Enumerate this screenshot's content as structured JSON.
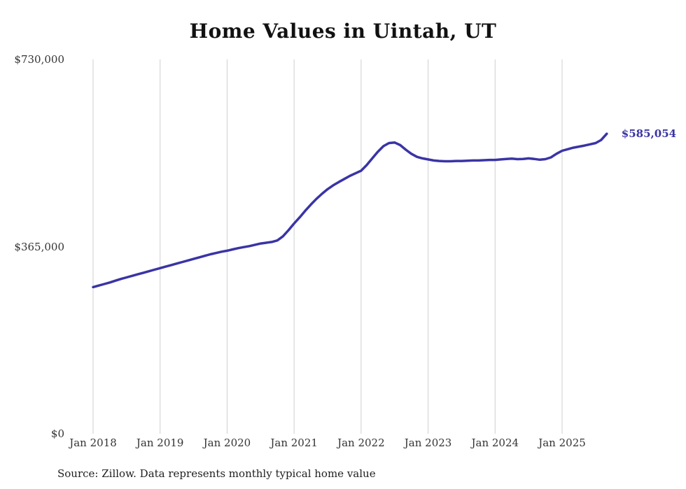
{
  "chart_data": {
    "type": "line",
    "title": "Home Values in Uintah, UT",
    "source_note": "Source: Zillow. Data represents monthly typical home value",
    "end_label": "$585,054",
    "latest_value": 585054,
    "line_color": "#3a34a5",
    "grid_color": "#cfcfcf",
    "label_color": "#333333",
    "ylim": [
      0,
      730000
    ],
    "grid": "vertical-only",
    "legend": "none",
    "y_ticks": [
      {
        "value": 0,
        "label": "$0"
      },
      {
        "value": 365000,
        "label": "$365,000"
      },
      {
        "value": 730000,
        "label": "$730,000"
      }
    ],
    "x_ticks": [
      {
        "label": "Jan 2018",
        "month_index": 0
      },
      {
        "label": "Jan 2019",
        "month_index": 12
      },
      {
        "label": "Jan 2020",
        "month_index": 24
      },
      {
        "label": "Jan 2021",
        "month_index": 36
      },
      {
        "label": "Jan 2022",
        "month_index": 48
      },
      {
        "label": "Jan 2023",
        "month_index": 60
      },
      {
        "label": "Jan 2024",
        "month_index": 72
      },
      {
        "label": "Jan 2025",
        "month_index": 84
      }
    ],
    "series": [
      {
        "name": "Typical home value",
        "start": "2018-01",
        "frequency": "monthly",
        "values": [
          286000,
          289000,
          292000,
          295000,
          298500,
          302000,
          305000,
          308000,
          311000,
          314000,
          317000,
          320000,
          323000,
          326000,
          329000,
          332000,
          335000,
          338000,
          341000,
          344000,
          347000,
          350000,
          352500,
          355000,
          357000,
          359500,
          362000,
          364000,
          366000,
          368500,
          371000,
          372500,
          374000,
          377000,
          385000,
          397000,
          410000,
          422000,
          435000,
          447000,
          458000,
          468000,
          477000,
          484500,
          491000,
          497000,
          503000,
          508000,
          513000,
          524000,
          537000,
          550000,
          561000,
          567000,
          568000,
          563000,
          554000,
          546000,
          540000,
          537000,
          535000,
          533000,
          532000,
          531500,
          531500,
          532000,
          532000,
          532500,
          533000,
          533000,
          533500,
          534000,
          534000,
          535000,
          536000,
          536500,
          535500,
          536000,
          537000,
          536000,
          534500,
          535500,
          539000,
          546000,
          552000,
          555000,
          558000,
          560000,
          562000,
          564500,
          567000,
          573000,
          585054
        ]
      }
    ]
  }
}
